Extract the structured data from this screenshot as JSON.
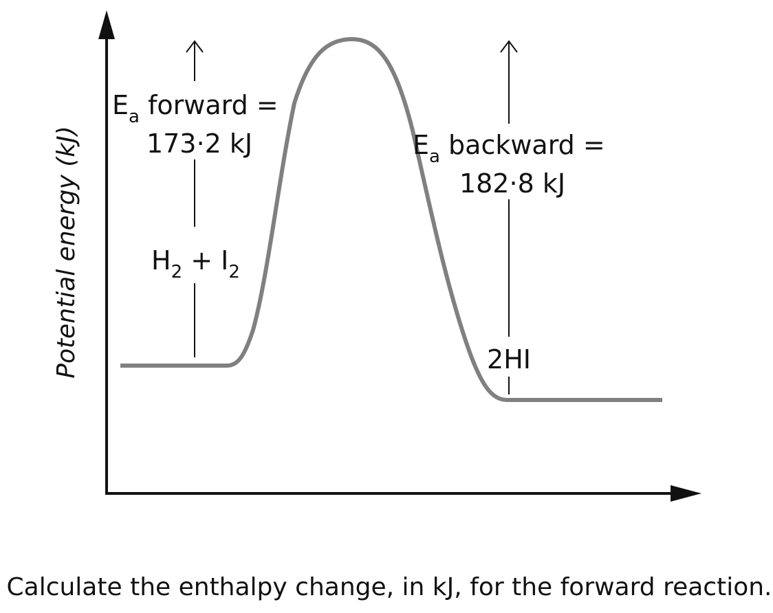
{
  "diagram": {
    "y_axis_label": "Potential energy (kJ)",
    "reactants": {
      "left": "H",
      "left_sub": "2",
      "plus": " + ",
      "right": "I",
      "right_sub": "2"
    },
    "products": "2HI",
    "ea_forward": {
      "symbol": "E",
      "sub": "a",
      "text": " forward =",
      "value": "173·2 kJ"
    },
    "ea_backward": {
      "symbol": "E",
      "sub": "a",
      "text": " backward =",
      "value": "182·8 kJ"
    },
    "curve_color": "#808080",
    "ink_color": "#111111"
  },
  "question": "Calculate the enthalpy change, in kJ, for the forward reaction."
}
